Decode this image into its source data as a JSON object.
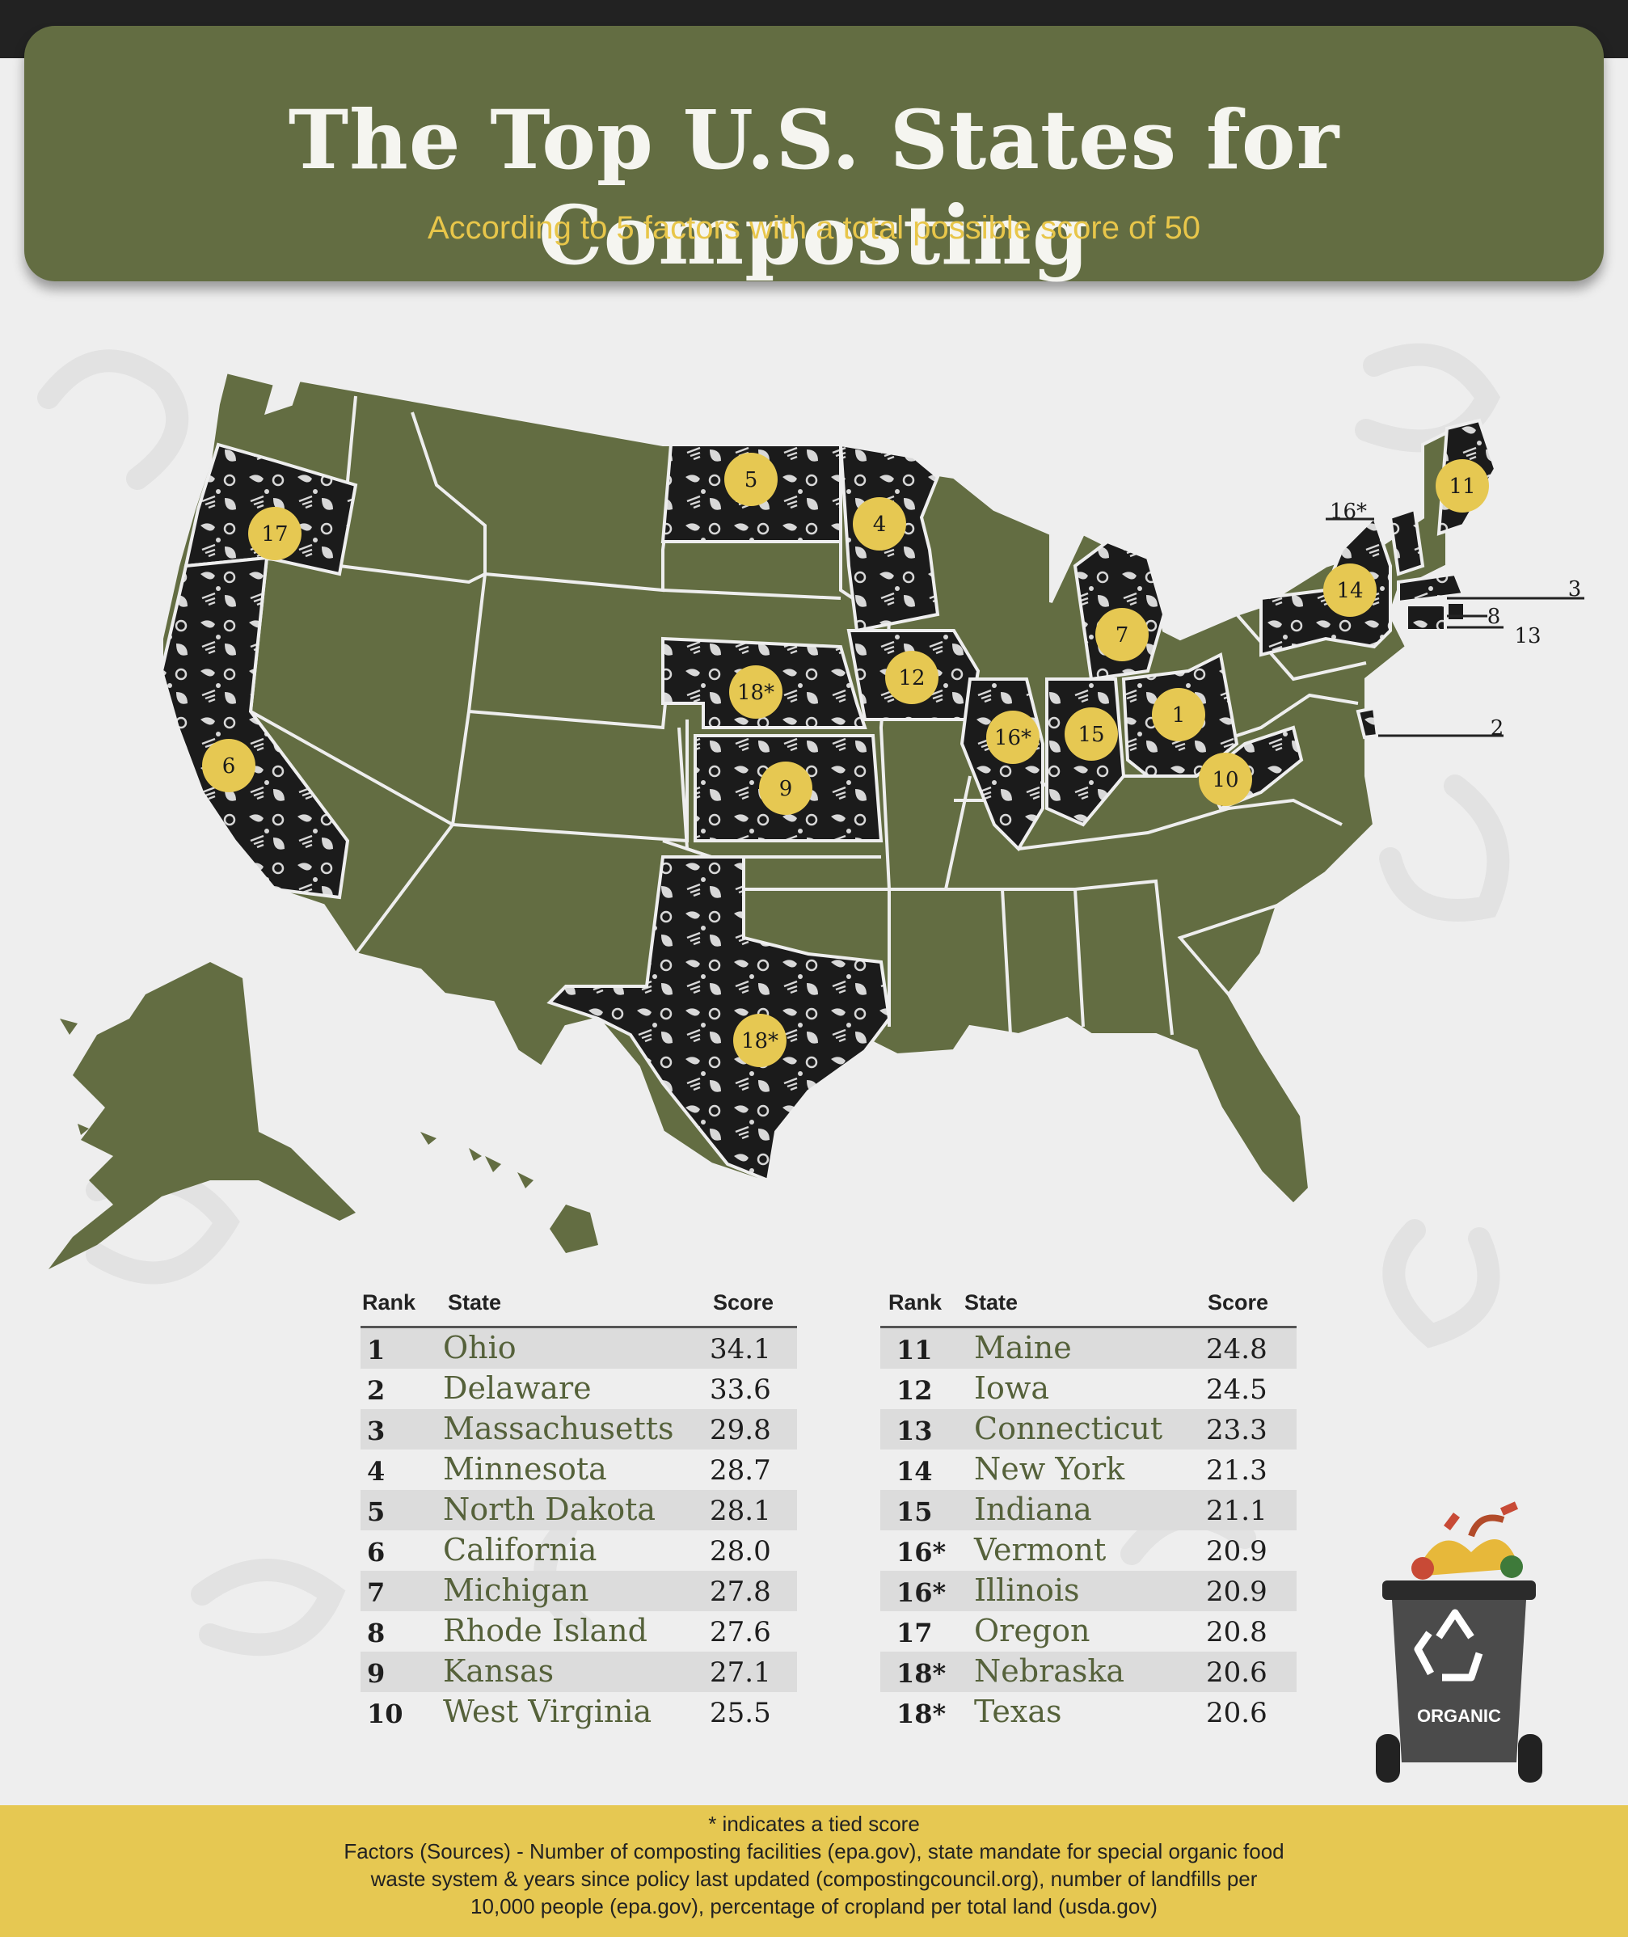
{
  "header": {
    "title": "The Top U.S. States for Composting",
    "subtitle": "According to 5 factors with a total possible score of 50"
  },
  "colors": {
    "header_bg": "#636d42",
    "map_state": "#636d42",
    "ranked_state": "#1b1b1b",
    "badge": "#e6c852",
    "subtitle": "#e8c64a",
    "footer_bg": "#e6c852"
  },
  "table": {
    "headers": {
      "rank": "Rank",
      "state": "State",
      "score": "Score"
    },
    "left": [
      {
        "rank": "1",
        "state": "Ohio",
        "score": "34.1"
      },
      {
        "rank": "2",
        "state": "Delaware",
        "score": "33.6"
      },
      {
        "rank": "3",
        "state": "Massachusetts",
        "score": "29.8"
      },
      {
        "rank": "4",
        "state": "Minnesota",
        "score": "28.7"
      },
      {
        "rank": "5",
        "state": "North Dakota",
        "score": "28.1"
      },
      {
        "rank": "6",
        "state": "California",
        "score": "28.0"
      },
      {
        "rank": "7",
        "state": "Michigan",
        "score": "27.8"
      },
      {
        "rank": "8",
        "state": "Rhode Island",
        "score": "27.6"
      },
      {
        "rank": "9",
        "state": "Kansas",
        "score": "27.1"
      },
      {
        "rank": "10",
        "state": "West Virginia",
        "score": "25.5"
      }
    ],
    "right": [
      {
        "rank": "11",
        "state": "Maine",
        "score": "24.8"
      },
      {
        "rank": "12",
        "state": "Iowa",
        "score": "24.5"
      },
      {
        "rank": "13",
        "state": "Connecticut",
        "score": "23.3"
      },
      {
        "rank": "14",
        "state": "New York",
        "score": "21.3"
      },
      {
        "rank": "15",
        "state": "Indiana",
        "score": "21.1"
      },
      {
        "rank": "16*",
        "state": "Vermont",
        "score": "20.9"
      },
      {
        "rank": "16*",
        "state": "Illinois",
        "score": "20.9"
      },
      {
        "rank": "17",
        "state": "Oregon",
        "score": "20.8"
      },
      {
        "rank": "18*",
        "state": "Nebraska",
        "score": "20.6"
      },
      {
        "rank": "18*",
        "state": "Texas",
        "score": "20.6"
      }
    ]
  },
  "map_labels": [
    {
      "state": "Oregon",
      "label": "17"
    },
    {
      "state": "California",
      "label": "6"
    },
    {
      "state": "North Dakota",
      "label": "5"
    },
    {
      "state": "Minnesota",
      "label": "4"
    },
    {
      "state": "Nebraska",
      "label": "18*"
    },
    {
      "state": "Kansas",
      "label": "9"
    },
    {
      "state": "Texas",
      "label": "18*"
    },
    {
      "state": "Iowa",
      "label": "12"
    },
    {
      "state": "Illinois",
      "label": "16*"
    },
    {
      "state": "Indiana",
      "label": "15"
    },
    {
      "state": "Ohio",
      "label": "1"
    },
    {
      "state": "Michigan",
      "label": "7"
    },
    {
      "state": "West Virginia",
      "label": "10"
    },
    {
      "state": "New York",
      "label": "14"
    },
    {
      "state": "Maine",
      "label": "11"
    },
    {
      "state": "Vermont",
      "label": "16*"
    },
    {
      "state": "Massachusetts",
      "label": "3"
    },
    {
      "state": "Rhode Island",
      "label": "8"
    },
    {
      "state": "Connecticut",
      "label": "13"
    },
    {
      "state": "Delaware",
      "label": "2"
    }
  ],
  "bin": {
    "label": "ORGANIC",
    "icon": "recycle-icon"
  },
  "footer": {
    "note": "* indicates a tied score",
    "line1": "Factors (Sources) - Number of composting facilities (epa.gov), state mandate for special organic food",
    "line2": "waste system & years since policy last updated (compostingcouncil.org), number of landfills per",
    "line3": "10,000 people (epa.gov), percentage of cropland per total land (usda.gov)"
  }
}
